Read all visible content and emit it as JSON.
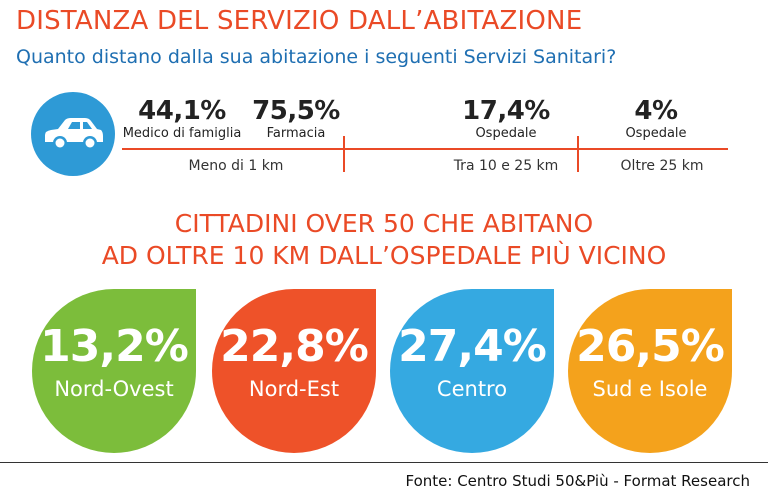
{
  "header": {
    "title": "DISTANZA DEL SERVIZIO DALL’ABITAZIONE",
    "subtitle": "Quanto distano dalla sua abitazione i seguenti Servizi Sanitari?"
  },
  "distance_panel": {
    "icon": "car-icon",
    "ranges": [
      "Meno di 1 km",
      "Tra 10 e 25 km",
      "Oltre 25 km"
    ],
    "stats": [
      {
        "value": "44,1%",
        "label": "Medico di famiglia"
      },
      {
        "value": "75,5%",
        "label": "Farmacia"
      },
      {
        "value": "17,4%",
        "label": "Ospedale"
      },
      {
        "value": "4%",
        "label": "Ospedale"
      }
    ],
    "colors": {
      "line": "#ea4a26",
      "circle": "#2e9ad6"
    }
  },
  "regions_panel": {
    "heading_line1": "CITTADINI OVER 50 CHE ABITANO",
    "heading_line2": "AD OLTRE 10 KM DALL’OSPEDALE PIÙ VICINO",
    "items": [
      {
        "value": "13,2%",
        "label": "Nord-Ovest",
        "color": "#7cbd3b"
      },
      {
        "value": "22,8%",
        "label": "Nord-Est",
        "color": "#ee5229"
      },
      {
        "value": "27,4%",
        "label": "Centro",
        "color": "#35a9e1"
      },
      {
        "value": "26,5%",
        "label": "Sud e Isole",
        "color": "#f4a21c"
      }
    ]
  },
  "footer": {
    "source": "Fonte: Centro Studi 50&Più - Format Research"
  },
  "chart_data": [
    {
      "type": "table",
      "title": "DISTANZA DEL SERVIZIO DALL’ABITAZIONE",
      "subtitle": "Quanto distano dalla sua abitazione i seguenti Servizi Sanitari?",
      "categories": [
        "Meno di 1 km",
        "Tra 10 e 25 km",
        "Oltre 25 km"
      ],
      "series": [
        {
          "name": "Medico di famiglia",
          "category": "Meno di 1 km",
          "value": 44.1
        },
        {
          "name": "Farmacia",
          "category": "Meno di 1 km",
          "value": 75.5
        },
        {
          "name": "Ospedale",
          "category": "Tra 10 e 25 km",
          "value": 17.4
        },
        {
          "name": "Ospedale",
          "category": "Oltre 25 km",
          "value": 4
        }
      ]
    },
    {
      "type": "bar",
      "title": "CITTADINI OVER 50 CHE ABITANO AD OLTRE 10 KM DALL’OSPEDALE PIÙ VICINO",
      "categories": [
        "Nord-Ovest",
        "Nord-Est",
        "Centro",
        "Sud e Isole"
      ],
      "values": [
        13.2,
        22.8,
        27.4,
        26.5
      ]
    }
  ]
}
